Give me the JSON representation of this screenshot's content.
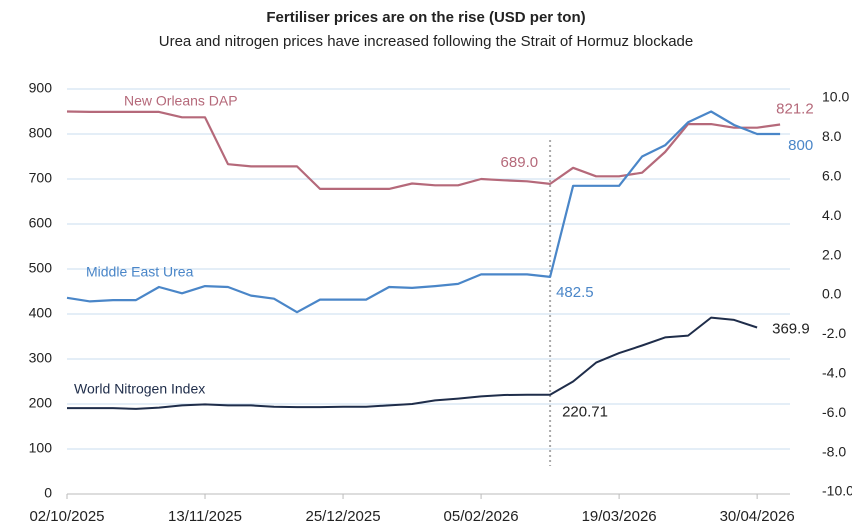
{
  "chart_data": {
    "type": "line",
    "title": "Fertiliser prices are on the rise (USD per ton)",
    "subtitle": "Urea and nitrogen prices have increased following the Strait of Hormuz blockade",
    "x": [
      "02/10/2025",
      "09/10/2025",
      "16/10/2025",
      "23/10/2025",
      "30/10/2025",
      "06/11/2025",
      "13/11/2025",
      "20/11/2025",
      "27/11/2025",
      "04/12/2025",
      "11/12/2025",
      "18/12/2025",
      "25/12/2025",
      "01/01/2026",
      "08/01/2026",
      "15/01/2026",
      "22/01/2026",
      "29/01/2026",
      "05/02/2026",
      "12/02/2026",
      "19/02/2026",
      "26/02/2026",
      "05/03/2026",
      "12/03/2026",
      "19/03/2026",
      "26/03/2026",
      "02/04/2026",
      "09/04/2026",
      "16/04/2026",
      "23/04/2026",
      "30/04/2026",
      "07/05/2026"
    ],
    "xlim": [
      "02/10/2025",
      "10/05/2026"
    ],
    "xticks": [
      "02/10/2025",
      "13/11/2025",
      "25/12/2025",
      "05/02/2026",
      "19/03/2026",
      "30/04/2026"
    ],
    "ylim": [
      0,
      900
    ],
    "yticks": [
      0,
      100,
      200,
      300,
      400,
      500,
      600,
      700,
      800,
      900
    ],
    "y2lim": [
      -10,
      10
    ],
    "y2ticks": [
      {
        "value": -10,
        "label": "-10.0"
      },
      {
        "value": -8,
        "label": "-8.0"
      },
      {
        "value": -6,
        "label": "-6.0"
      },
      {
        "value": -4,
        "label": "-4.0"
      },
      {
        "value": -2,
        "label": "-2.0"
      },
      {
        "value": 0,
        "label": "0.0"
      },
      {
        "value": 2,
        "label": "2.0"
      },
      {
        "value": 4,
        "label": "4.0"
      },
      {
        "value": 6,
        "label": "6.0"
      },
      {
        "value": 8,
        "label": "8.0"
      },
      {
        "value": 10,
        "label": "10.0"
      }
    ],
    "grid": true,
    "marker_x": "26/02/2026",
    "series": [
      {
        "name": "New Orleans DAP",
        "color": "#b5697a",
        "values": [
          850,
          849,
          849,
          849,
          849,
          837,
          837,
          733,
          728,
          728,
          728,
          678,
          678,
          678,
          678,
          690,
          686,
          686,
          700,
          697,
          695,
          689,
          725,
          706,
          706,
          714,
          760,
          822,
          822,
          814,
          814,
          821.2
        ],
        "value_labels": [
          null,
          null,
          null,
          null,
          null,
          null,
          null,
          null,
          null,
          null,
          null,
          null,
          null,
          null,
          null,
          null,
          null,
          null,
          null,
          null,
          null,
          "689.0",
          null,
          null,
          null,
          null,
          null,
          null,
          null,
          null,
          null,
          "821.2"
        ]
      },
      {
        "name": "Middle East Urea",
        "color": "#4a86c8",
        "values": [
          436,
          428,
          431,
          431,
          460,
          446,
          462,
          460,
          441,
          434,
          404,
          432,
          432,
          432,
          460,
          458,
          462,
          467,
          488,
          488,
          488,
          482.5,
          685,
          685,
          685,
          750,
          775,
          826,
          850,
          820,
          800,
          800
        ],
        "value_labels": [
          null,
          null,
          null,
          null,
          null,
          null,
          null,
          null,
          null,
          null,
          null,
          null,
          null,
          null,
          null,
          null,
          null,
          null,
          null,
          null,
          null,
          "482.5",
          null,
          null,
          null,
          null,
          null,
          null,
          null,
          null,
          null,
          "800"
        ]
      },
      {
        "name": "World Nitrogen Index",
        "color": "#1f2d4a",
        "values": [
          191,
          191,
          191,
          189,
          192,
          197,
          199,
          197,
          197,
          194,
          193,
          193,
          194,
          194,
          197,
          200,
          208,
          212,
          217,
          220,
          220.71,
          220.71,
          250,
          292,
          313,
          330,
          348,
          352,
          392,
          387,
          369.9,
          null
        ],
        "value_labels": [
          null,
          null,
          null,
          null,
          null,
          null,
          null,
          null,
          null,
          null,
          null,
          null,
          null,
          null,
          null,
          null,
          null,
          null,
          null,
          null,
          null,
          "220.71",
          null,
          null,
          null,
          null,
          null,
          null,
          null,
          null,
          "369.9",
          null
        ]
      }
    ]
  }
}
